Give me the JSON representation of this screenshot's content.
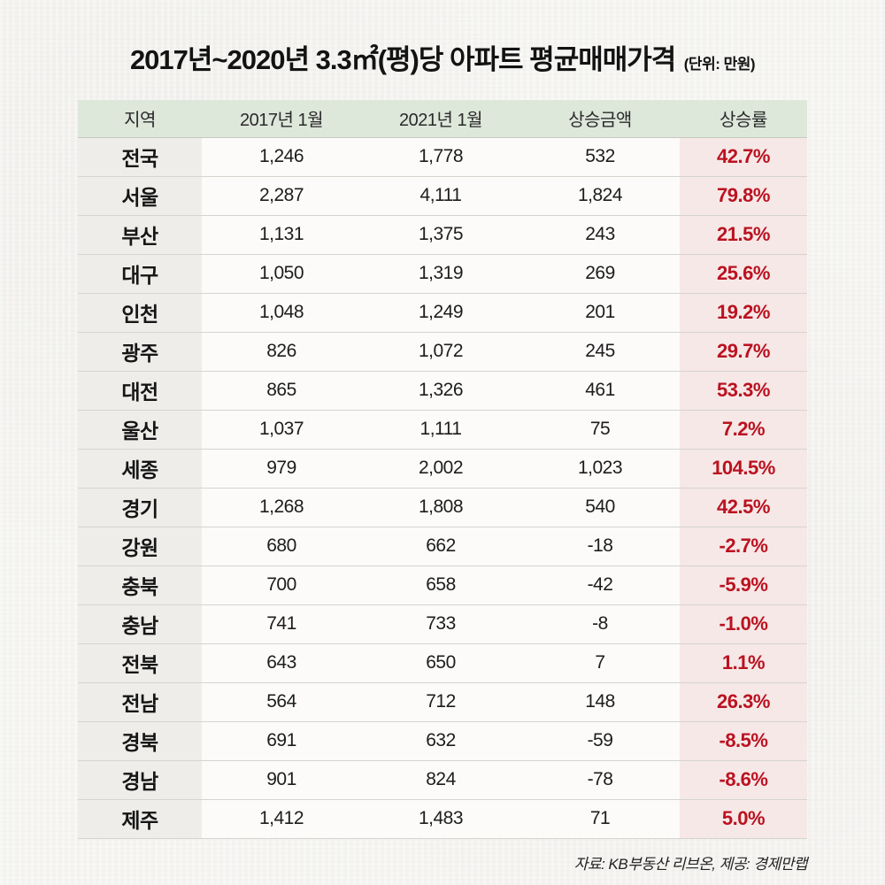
{
  "title": {
    "main": "2017년~2020년 3.3㎡(평)당 아파트 평균매매가격",
    "unit_note": "(단위: 만원)"
  },
  "footer": {
    "source": "자료: KB부동산 리브온, 제공: 경제만랩"
  },
  "colors": {
    "header_bg": "#dde7da",
    "region_col_bg": "#eeedea",
    "value_col_bg": "#fcfbf9",
    "rate_col_bg": "#f6e8e7",
    "rate_text": "#bb1220",
    "page_bg": "#f5f4f1"
  },
  "chart_data": {
    "type": "table",
    "title": "2017년~2020년 3.3㎡(평)당 아파트 평균매매가격",
    "unit": "만원",
    "columns": [
      "지역",
      "2017년 1월",
      "2021년 1월",
      "상승금액",
      "상승률"
    ],
    "rows": [
      {
        "region": "전국",
        "jan_2017": "1,246",
        "jan_2021": "1,778",
        "increase": "532",
        "rate": "42.7%"
      },
      {
        "region": "서울",
        "jan_2017": "2,287",
        "jan_2021": "4,111",
        "increase": "1,824",
        "rate": "79.8%"
      },
      {
        "region": "부산",
        "jan_2017": "1,131",
        "jan_2021": "1,375",
        "increase": "243",
        "rate": "21.5%"
      },
      {
        "region": "대구",
        "jan_2017": "1,050",
        "jan_2021": "1,319",
        "increase": "269",
        "rate": "25.6%"
      },
      {
        "region": "인천",
        "jan_2017": "1,048",
        "jan_2021": "1,249",
        "increase": "201",
        "rate": "19.2%"
      },
      {
        "region": "광주",
        "jan_2017": "826",
        "jan_2021": "1,072",
        "increase": "245",
        "rate": "29.7%"
      },
      {
        "region": "대전",
        "jan_2017": "865",
        "jan_2021": "1,326",
        "increase": "461",
        "rate": "53.3%"
      },
      {
        "region": "울산",
        "jan_2017": "1,037",
        "jan_2021": "1,111",
        "increase": "75",
        "rate": "7.2%"
      },
      {
        "region": "세종",
        "jan_2017": "979",
        "jan_2021": "2,002",
        "increase": "1,023",
        "rate": "104.5%"
      },
      {
        "region": "경기",
        "jan_2017": "1,268",
        "jan_2021": "1,808",
        "increase": "540",
        "rate": "42.5%"
      },
      {
        "region": "강원",
        "jan_2017": "680",
        "jan_2021": "662",
        "increase": "-18",
        "rate": "-2.7%"
      },
      {
        "region": "충북",
        "jan_2017": "700",
        "jan_2021": "658",
        "increase": "-42",
        "rate": "-5.9%"
      },
      {
        "region": "충남",
        "jan_2017": "741",
        "jan_2021": "733",
        "increase": "-8",
        "rate": "-1.0%"
      },
      {
        "region": "전북",
        "jan_2017": "643",
        "jan_2021": "650",
        "increase": "7",
        "rate": "1.1%"
      },
      {
        "region": "전남",
        "jan_2017": "564",
        "jan_2021": "712",
        "increase": "148",
        "rate": "26.3%"
      },
      {
        "region": "경북",
        "jan_2017": "691",
        "jan_2021": "632",
        "increase": "-59",
        "rate": "-8.5%"
      },
      {
        "region": "경남",
        "jan_2017": "901",
        "jan_2021": "824",
        "increase": "-78",
        "rate": "-8.6%"
      },
      {
        "region": "제주",
        "jan_2017": "1,412",
        "jan_2021": "1,483",
        "increase": "71",
        "rate": "5.0%"
      }
    ]
  }
}
